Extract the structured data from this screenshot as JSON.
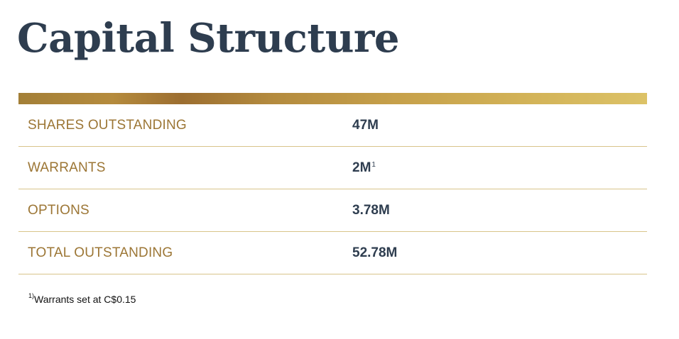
{
  "title": "Capital Structure",
  "colors": {
    "title": "#2e3d4f",
    "label": "#9c7635",
    "value": "#2e3d4f",
    "divider": "#d8c48a",
    "bar_start": "#a37f37",
    "bar_end": "#dcc267"
  },
  "rows": [
    {
      "label": "SHARES OUTSTANDING",
      "value": "47M",
      "note": ""
    },
    {
      "label": "WARRANTS",
      "value": "2M",
      "note": "1"
    },
    {
      "label": "OPTIONS",
      "value": "3.78M",
      "note": ""
    },
    {
      "label": "TOTAL OUTSTANDING",
      "value": "52.78M",
      "note": ""
    }
  ],
  "footnote": {
    "marker": "1)",
    "text": "Warrants set at C$0.15"
  }
}
